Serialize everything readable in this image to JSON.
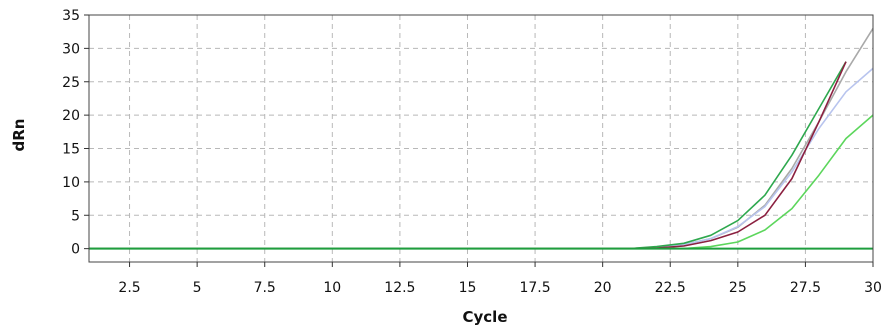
{
  "chart_data": {
    "type": "line",
    "xlabel": "Cycle",
    "ylabel": "dRn",
    "xlim": [
      1,
      30
    ],
    "ylim": [
      -2,
      35
    ],
    "grid": true,
    "x_ticks": [
      2.5,
      5,
      7.5,
      10,
      12.5,
      15,
      17.5,
      20,
      22.5,
      25,
      27.5,
      30
    ],
    "x_tick_labels": [
      "2.5",
      "5",
      "7.5",
      "10",
      "12.5",
      "15",
      "17.5",
      "20",
      "22.5",
      "25",
      "27.5",
      "30"
    ],
    "y_ticks": [
      0,
      5,
      10,
      15,
      20,
      25,
      30,
      35
    ],
    "y_tick_labels": [
      "0",
      "5",
      "10",
      "15",
      "20",
      "25",
      "30",
      "35"
    ],
    "series": [
      {
        "color": "#a9a9a9",
        "x": [
          1,
          21,
          22,
          23,
          24,
          25,
          26,
          27,
          28,
          29,
          30
        ],
        "y": [
          0,
          0,
          0.2,
          0.6,
          1.5,
          3.2,
          6.5,
          12,
          19,
          26.5,
          33
        ]
      },
      {
        "color": "#b8c4ee",
        "x": [
          1,
          21,
          22,
          23,
          24,
          25,
          26,
          27,
          28,
          29,
          30
        ],
        "y": [
          0,
          0,
          0.2,
          0.6,
          1.5,
          3.3,
          6.3,
          11.5,
          18,
          23.5,
          27
        ]
      },
      {
        "color": "#2ea84e",
        "x": [
          1,
          21,
          22,
          23,
          24,
          25,
          26,
          27,
          28,
          29
        ],
        "y": [
          0,
          0,
          0.3,
          0.8,
          2,
          4.2,
          8,
          14,
          21,
          28
        ]
      },
      {
        "color": "#8b2040",
        "x": [
          1,
          21,
          22,
          23,
          24,
          25,
          26,
          27,
          28,
          29
        ],
        "y": [
          0,
          0,
          0.1,
          0.4,
          1.2,
          2.5,
          5,
          10.5,
          19,
          28
        ]
      },
      {
        "color": "#5cd65c",
        "x": [
          1,
          23,
          24,
          25,
          26,
          27,
          28,
          29,
          30
        ],
        "y": [
          0,
          0,
          0.3,
          1,
          2.8,
          6,
          11,
          16.5,
          20
        ]
      },
      {
        "color": "#1e9e3e",
        "x": [
          1,
          30
        ],
        "y": [
          0,
          0
        ]
      }
    ]
  }
}
